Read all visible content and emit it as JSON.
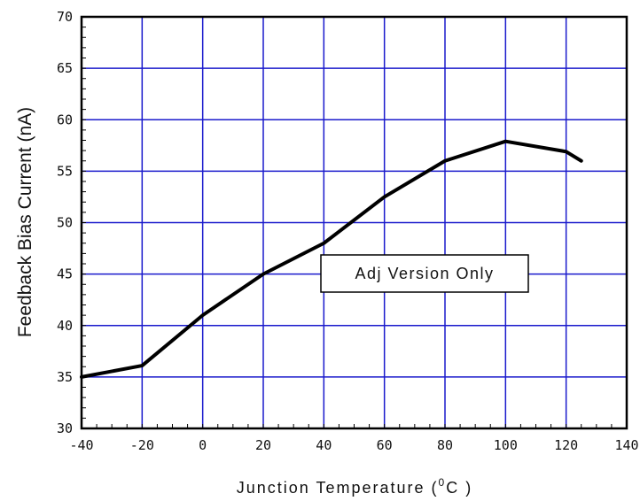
{
  "chart_data": {
    "type": "line",
    "title": "",
    "xlabel_main": "Junction Temperature (",
    "xlabel_sup": "0",
    "xlabel_end": "C )",
    "ylabel": "Feedback Bias Current (nA)",
    "xlim": [
      -40,
      140
    ],
    "ylim": [
      30,
      70
    ],
    "xticks": [
      -40,
      -20,
      0,
      20,
      40,
      60,
      80,
      100,
      120,
      140
    ],
    "yticks": [
      30,
      35,
      40,
      45,
      50,
      55,
      60,
      65,
      70
    ],
    "grid": true,
    "annotation": "Adj Version Only",
    "series": [
      {
        "x": [
          -40,
          -20,
          0,
          20,
          40,
          60,
          80,
          100,
          120,
          125
        ],
        "y": [
          35,
          36.1,
          41,
          45,
          48,
          52.5,
          56,
          57.9,
          56.9,
          56
        ]
      }
    ],
    "colors": {
      "grid": "#1a1acc",
      "line": "#000000",
      "frame": "#000000"
    }
  }
}
